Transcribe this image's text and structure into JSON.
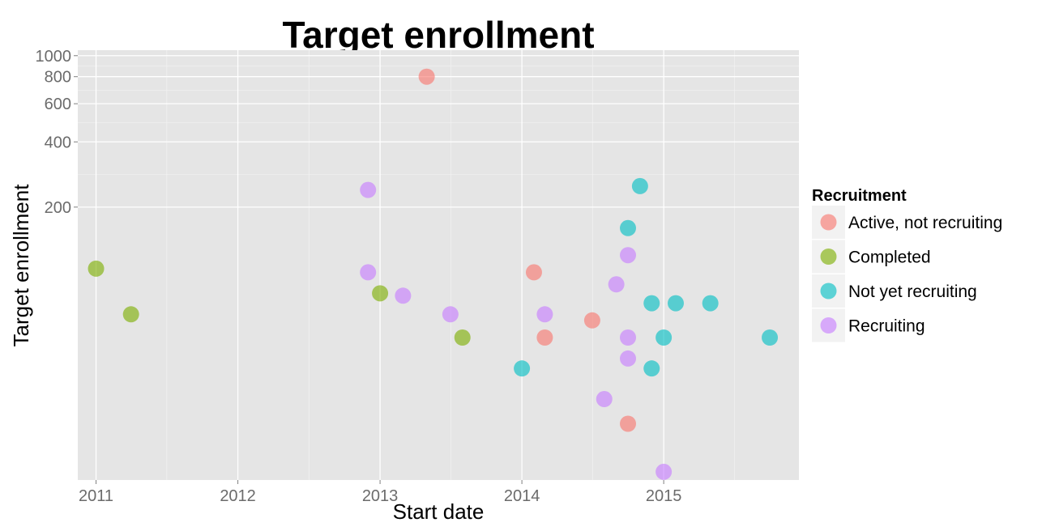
{
  "chart_data": {
    "type": "scatter",
    "title": "Target enrollment",
    "xlabel": "Start date",
    "ylabel": "Target enrollment",
    "x_scale": "date",
    "y_scale": "log",
    "xlim": [
      "2010-11-15",
      "2015-12-15"
    ],
    "ylim": [
      11,
      1060
    ],
    "x_ticks": [
      "2011",
      "2012",
      "2013",
      "2014",
      "2015"
    ],
    "y_ticks": [
      200,
      400,
      600,
      800,
      1000
    ],
    "grid": true,
    "legend": {
      "title": "Recruitment",
      "position": "right"
    },
    "series": [
      {
        "name": "Active, not recruiting",
        "color": "#F8766D",
        "points": [
          {
            "x": "2013-05-01",
            "y": 800
          },
          {
            "x": "2014-02-01",
            "y": 100
          },
          {
            "x": "2014-03-01",
            "y": 50
          },
          {
            "x": "2014-07-01",
            "y": 60
          },
          {
            "x": "2014-10-01",
            "y": 20
          }
        ]
      },
      {
        "name": "Completed",
        "color": "#7CAE00",
        "points": [
          {
            "x": "2011-01-01",
            "y": 104
          },
          {
            "x": "2011-04-01",
            "y": 64
          },
          {
            "x": "2013-01-01",
            "y": 80
          },
          {
            "x": "2013-08-01",
            "y": 50
          }
        ]
      },
      {
        "name": "Not yet recruiting",
        "color": "#00BFC4",
        "points": [
          {
            "x": "2014-01-01",
            "y": 36
          },
          {
            "x": "2014-10-01",
            "y": 160
          },
          {
            "x": "2014-11-01",
            "y": 250
          },
          {
            "x": "2014-12-01",
            "y": 72
          },
          {
            "x": "2014-12-01",
            "y": 36
          },
          {
            "x": "2015-01-01",
            "y": 50
          },
          {
            "x": "2015-02-01",
            "y": 72
          },
          {
            "x": "2015-05-01",
            "y": 72
          },
          {
            "x": "2015-10-01",
            "y": 50
          }
        ]
      },
      {
        "name": "Recruiting",
        "color": "#C77CFF",
        "points": [
          {
            "x": "2012-12-01",
            "y": 240
          },
          {
            "x": "2012-12-01",
            "y": 100
          },
          {
            "x": "2013-03-01",
            "y": 78
          },
          {
            "x": "2013-07-01",
            "y": 64
          },
          {
            "x": "2014-03-01",
            "y": 64
          },
          {
            "x": "2014-08-01",
            "y": 26
          },
          {
            "x": "2014-09-01",
            "y": 88
          },
          {
            "x": "2014-10-01",
            "y": 120
          },
          {
            "x": "2014-10-01",
            "y": 50
          },
          {
            "x": "2014-10-01",
            "y": 40
          },
          {
            "x": "2015-01-01",
            "y": 12
          }
        ]
      }
    ]
  }
}
